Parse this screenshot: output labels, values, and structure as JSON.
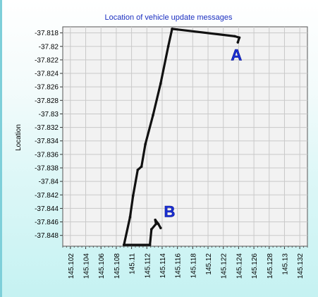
{
  "chart_data": {
    "type": "line",
    "title": "Location of vehicle update messages",
    "xlabel": "",
    "ylabel": "Location",
    "xlim": [
      145.101,
      145.133
    ],
    "ylim": [
      -37.8496,
      -37.8171
    ],
    "x_ticks": [
      "145.102",
      "145.104",
      "145.106",
      "145.108",
      "145.11",
      "145.112",
      "145.114",
      "145.116",
      "145.118",
      "145.12",
      "145.122",
      "145.124",
      "145.126",
      "145.128",
      "145.13",
      "145.132"
    ],
    "y_ticks": [
      "-37.818",
      "-37.82",
      "-37.822",
      "-37.824",
      "-37.826",
      "-37.828",
      "-37.83",
      "-37.832",
      "-37.834",
      "-37.836",
      "-37.838",
      "-37.84",
      "-37.842",
      "-37.844",
      "-37.846",
      "-37.848"
    ],
    "grid": true,
    "series": [
      {
        "color": "#111111",
        "x": [
          145.1239,
          145.1241,
          145.1235,
          145.1153,
          145.1148,
          145.1138,
          145.1128,
          145.1118,
          145.1113,
          145.1108,
          145.1102,
          145.1098,
          145.109,
          145.1124,
          145.1126,
          145.1132,
          145.1131,
          145.1135,
          145.1138
        ],
        "y": [
          -37.8194,
          -37.8187,
          -37.8185,
          -37.8174,
          -37.82,
          -37.8255,
          -37.8302,
          -37.8345,
          -37.8378,
          -37.8383,
          -37.8421,
          -37.8453,
          -37.8494,
          -37.8494,
          -37.8471,
          -37.8463,
          -37.8457,
          -37.8463,
          -37.8469
        ]
      }
    ],
    "annotations": [
      {
        "text": "A",
        "x": 145.1239,
        "y": -37.8187
      },
      {
        "text": "B",
        "x": 145.1135,
        "y": -37.8463
      }
    ]
  }
}
